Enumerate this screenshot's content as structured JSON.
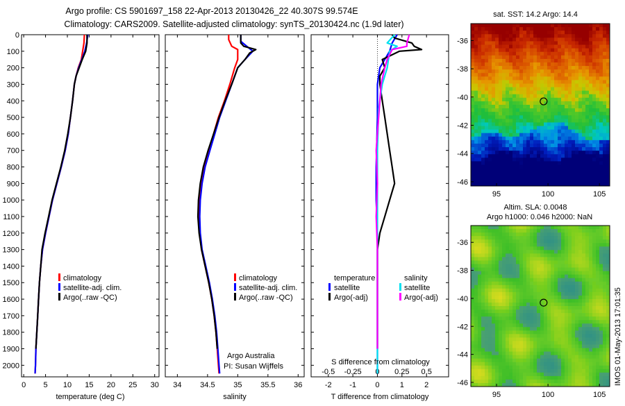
{
  "header": {
    "line1": "Argo profile: CS 5901697_158 22-Apr-2013 20130426_22 40.307S 99.574E",
    "line2": "Climatology: CARS2009. Satellite-adjusted climatology: synTS_20130424.nc (1.9d later)"
  },
  "colors": {
    "climatology": "#ff0000",
    "satellite": "#0000ff",
    "argo": "#000000",
    "salinity_satellite": "#00e0f0",
    "salinity_argo": "#ff00ff"
  },
  "chart_data": [
    {
      "type": "line",
      "name": "temperature-profile",
      "xlabel": "temperature (deg C)",
      "ylabel": "",
      "xlim": [
        -0.5,
        31
      ],
      "xticks": [
        0,
        5,
        10,
        15,
        20,
        25,
        30
      ],
      "ylim": [
        2070,
        0
      ],
      "yticks": [
        0,
        100,
        200,
        300,
        400,
        500,
        600,
        700,
        800,
        900,
        1000,
        1100,
        1200,
        1300,
        1400,
        1500,
        1600,
        1700,
        1800,
        1900,
        2000
      ],
      "legend": [
        "climatology",
        "satellite-adj. clim.",
        "Argo(..raw -QC)"
      ],
      "legend_position": "lower-right",
      "series": [
        {
          "name": "climatology",
          "color": "#ff0000",
          "points": [
            [
              13.9,
              0
            ],
            [
              13.8,
              50
            ],
            [
              13.5,
              100
            ],
            [
              13.2,
              150
            ],
            [
              12.5,
              200
            ],
            [
              12.0,
              250
            ],
            [
              11.6,
              300
            ],
            [
              11.2,
              400
            ],
            [
              10.7,
              500
            ],
            [
              10.2,
              600
            ],
            [
              9.5,
              700
            ],
            [
              8.6,
              800
            ],
            [
              7.6,
              900
            ],
            [
              6.6,
              1000
            ],
            [
              5.8,
              1100
            ],
            [
              5.0,
              1200
            ],
            [
              4.3,
              1300
            ],
            [
              3.9,
              1400
            ],
            [
              3.6,
              1500
            ],
            [
              3.4,
              1600
            ],
            [
              3.2,
              1700
            ],
            [
              3.0,
              1800
            ],
            [
              2.8,
              1900
            ],
            [
              2.7,
              2000
            ],
            [
              2.6,
              2050
            ]
          ]
        },
        {
          "name": "satellite-adj. clim.",
          "color": "#0000ff",
          "points": [
            [
              14.7,
              0
            ],
            [
              14.4,
              50
            ],
            [
              14.0,
              100
            ],
            [
              13.3,
              150
            ],
            [
              12.6,
              200
            ],
            [
              12.0,
              250
            ],
            [
              11.6,
              300
            ],
            [
              11.2,
              400
            ],
            [
              10.7,
              500
            ],
            [
              10.2,
              600
            ],
            [
              9.5,
              700
            ],
            [
              8.6,
              800
            ],
            [
              7.6,
              900
            ],
            [
              6.6,
              1000
            ],
            [
              5.8,
              1100
            ],
            [
              5.0,
              1200
            ],
            [
              4.3,
              1300
            ],
            [
              3.9,
              1400
            ],
            [
              3.6,
              1500
            ],
            [
              3.4,
              1600
            ],
            [
              3.2,
              1700
            ],
            [
              3.0,
              1800
            ],
            [
              2.8,
              1900
            ],
            [
              2.7,
              2000
            ],
            [
              2.6,
              2050
            ]
          ]
        },
        {
          "name": "Argo(..raw -QC)",
          "color": "#000000",
          "points": [
            [
              14.5,
              0
            ],
            [
              14.5,
              50
            ],
            [
              14.2,
              100
            ],
            [
              13.4,
              150
            ],
            [
              12.7,
              200
            ],
            [
              12.0,
              250
            ],
            [
              11.6,
              300
            ],
            [
              11.2,
              400
            ],
            [
              10.7,
              500
            ],
            [
              10.1,
              600
            ],
            [
              9.4,
              700
            ],
            [
              8.5,
              800
            ],
            [
              7.5,
              900
            ],
            [
              6.5,
              1000
            ],
            [
              5.7,
              1100
            ],
            [
              4.9,
              1200
            ],
            [
              4.2,
              1300
            ],
            [
              3.9,
              1400
            ],
            [
              3.6,
              1500
            ],
            [
              3.4,
              1600
            ],
            [
              3.2,
              1700
            ],
            [
              3.0,
              1800
            ],
            [
              2.8,
              1900
            ]
          ]
        }
      ]
    },
    {
      "type": "line",
      "name": "salinity-profile",
      "xlabel": "salinity",
      "xlim": [
        33.8,
        36.1
      ],
      "xticks": [
        34,
        34.5,
        35,
        35.5,
        36
      ],
      "ylim": [
        2070,
        0
      ],
      "legend": [
        "climatology",
        "satellite-adj. clim.",
        "Argo(..raw -QC)"
      ],
      "legend_position": "lower-right",
      "annotation": [
        "Argo Australia",
        "PI: Susan Wijffels"
      ],
      "series": [
        {
          "name": "climatology",
          "color": "#ff0000",
          "points": [
            [
              34.85,
              0
            ],
            [
              34.85,
              30
            ],
            [
              34.9,
              70
            ],
            [
              35.0,
              90
            ],
            [
              35.0,
              150
            ],
            [
              34.95,
              200
            ],
            [
              34.87,
              300
            ],
            [
              34.78,
              400
            ],
            [
              34.68,
              500
            ],
            [
              34.6,
              600
            ],
            [
              34.52,
              700
            ],
            [
              34.45,
              800
            ],
            [
              34.4,
              900
            ],
            [
              34.37,
              1000
            ],
            [
              34.36,
              1100
            ],
            [
              34.37,
              1200
            ],
            [
              34.4,
              1300
            ],
            [
              34.46,
              1400
            ],
            [
              34.52,
              1500
            ],
            [
              34.57,
              1600
            ],
            [
              34.61,
              1700
            ],
            [
              34.64,
              1800
            ],
            [
              34.66,
              1900
            ],
            [
              34.68,
              2000
            ],
            [
              34.69,
              2050
            ]
          ]
        },
        {
          "name": "satellite-adj. clim.",
          "color": "#0000ff",
          "points": [
            [
              35.05,
              0
            ],
            [
              35.05,
              40
            ],
            [
              35.15,
              70
            ],
            [
              35.25,
              100
            ],
            [
              35.12,
              150
            ],
            [
              35.0,
              200
            ],
            [
              34.9,
              300
            ],
            [
              34.8,
              400
            ],
            [
              34.7,
              500
            ],
            [
              34.62,
              600
            ],
            [
              34.54,
              700
            ],
            [
              34.46,
              800
            ],
            [
              34.41,
              900
            ],
            [
              34.38,
              1000
            ],
            [
              34.37,
              1100
            ],
            [
              34.38,
              1200
            ],
            [
              34.41,
              1300
            ],
            [
              34.47,
              1400
            ],
            [
              34.53,
              1500
            ],
            [
              34.58,
              1600
            ],
            [
              34.62,
              1700
            ],
            [
              34.65,
              1800
            ],
            [
              34.67,
              1900
            ],
            [
              34.69,
              2000
            ],
            [
              34.7,
              2050
            ]
          ]
        },
        {
          "name": "Argo(..raw -QC)",
          "color": "#000000",
          "points": [
            [
              35.05,
              0
            ],
            [
              35.05,
              50
            ],
            [
              35.1,
              70
            ],
            [
              35.2,
              80
            ],
            [
              35.3,
              90
            ],
            [
              35.2,
              110
            ],
            [
              35.12,
              150
            ],
            [
              35.0,
              200
            ],
            [
              34.9,
              300
            ],
            [
              34.79,
              400
            ],
            [
              34.69,
              500
            ],
            [
              34.6,
              600
            ],
            [
              34.51,
              700
            ],
            [
              34.43,
              800
            ],
            [
              34.38,
              900
            ],
            [
              34.35,
              1000
            ],
            [
              34.34,
              1100
            ],
            [
              34.36,
              1200
            ],
            [
              34.4,
              1300
            ],
            [
              34.46,
              1400
            ],
            [
              34.52,
              1500
            ],
            [
              34.57,
              1600
            ],
            [
              34.61,
              1700
            ],
            [
              34.64,
              1800
            ],
            [
              34.66,
              1900
            ]
          ]
        }
      ]
    },
    {
      "type": "line",
      "name": "difference-profile",
      "title": "S difference from climatology",
      "xlabel": "T difference from climatology",
      "xlim": [
        -2.7,
        2.9
      ],
      "xticks": [
        -2,
        -1,
        0,
        1,
        2
      ],
      "top_ticks": [
        -0.5,
        -0.25,
        0,
        0.25,
        0.5
      ],
      "ylim": [
        2070,
        0
      ],
      "legend_groups": [
        {
          "title": "temperature",
          "items": [
            "satellite",
            "Argo(-adj)"
          ]
        },
        {
          "title": "salinity",
          "items": [
            "satellite",
            "Argo(-adj)"
          ]
        }
      ],
      "series": [
        {
          "name": "temperature satellite",
          "color": "#0000ff",
          "points": [
            [
              0.8,
              0
            ],
            [
              0.6,
              50
            ],
            [
              0.5,
              100
            ],
            [
              0.1,
              200
            ],
            [
              0,
              300
            ],
            [
              0,
              500
            ],
            [
              -0.05,
              800
            ],
            [
              -0.05,
              1000
            ],
            [
              0,
              1200
            ],
            [
              0,
              2050
            ]
          ]
        },
        {
          "name": "temperature Argo(-adj)",
          "color": "#000000",
          "points": [
            [
              0.6,
              0
            ],
            [
              0.7,
              20
            ],
            [
              1.4,
              50
            ],
            [
              1.5,
              70
            ],
            [
              1.8,
              90
            ],
            [
              0.9,
              100
            ],
            [
              0.2,
              150
            ],
            [
              0.3,
              200
            ],
            [
              0.1,
              250
            ],
            [
              0.1,
              300
            ],
            [
              0.2,
              400
            ],
            [
              0.3,
              500
            ],
            [
              0.4,
              600
            ],
            [
              0.5,
              700
            ],
            [
              0.6,
              800
            ],
            [
              0.7,
              900
            ],
            [
              0.5,
              1000
            ],
            [
              0.3,
              1100
            ],
            [
              0.1,
              1200
            ],
            [
              0,
              1300
            ],
            [
              0,
              1900
            ]
          ]
        },
        {
          "name": "salinity satellite",
          "color": "#00e0f0",
          "points": [
            [
              0.7,
              0
            ],
            [
              0.4,
              50
            ],
            [
              0.8,
              70
            ],
            [
              0.5,
              100
            ],
            [
              0.4,
              200
            ],
            [
              0.2,
              300
            ],
            [
              0.05,
              450
            ],
            [
              0,
              700
            ],
            [
              0,
              2050
            ]
          ]
        },
        {
          "name": "salinity Argo(-adj)",
          "color": "#ff00ff",
          "points": [
            [
              1.3,
              0
            ],
            [
              1.2,
              50
            ],
            [
              1.2,
              70
            ],
            [
              0.6,
              90
            ],
            [
              0.4,
              150
            ],
            [
              0.3,
              200
            ],
            [
              0.15,
              300
            ],
            [
              0.05,
              500
            ],
            [
              -0.05,
              700
            ],
            [
              0,
              900
            ],
            [
              -0.05,
              1100
            ],
            [
              0,
              1300
            ],
            [
              0,
              1900
            ]
          ]
        }
      ]
    },
    {
      "type": "heatmap",
      "name": "sst-map",
      "title": "sat. SST: 14.2 Argo: 14.4",
      "xlim": [
        92.5,
        106
      ],
      "xticks": [
        95,
        100,
        105
      ],
      "ylim": [
        -46.3,
        -34.8
      ],
      "yticks": [
        -36,
        -38,
        -40,
        -42,
        -44,
        -46
      ],
      "marker": {
        "lon": 99.574,
        "lat": -40.307
      }
    },
    {
      "type": "heatmap",
      "name": "sla-map",
      "title": "Altim. SLA: 0.0048",
      "subtitle": "Argo h1000: 0.046 h2000: NaN",
      "xlim": [
        92.5,
        106
      ],
      "xticks": [
        95,
        100,
        105
      ],
      "ylim": [
        -46.3,
        -34.8
      ],
      "yticks": [
        -36,
        -38,
        -40,
        -42,
        -44,
        -46
      ],
      "marker": {
        "lon": 99.574,
        "lat": -40.307
      },
      "side_label": "IMOS 01-May-2013 17:01:35"
    }
  ]
}
